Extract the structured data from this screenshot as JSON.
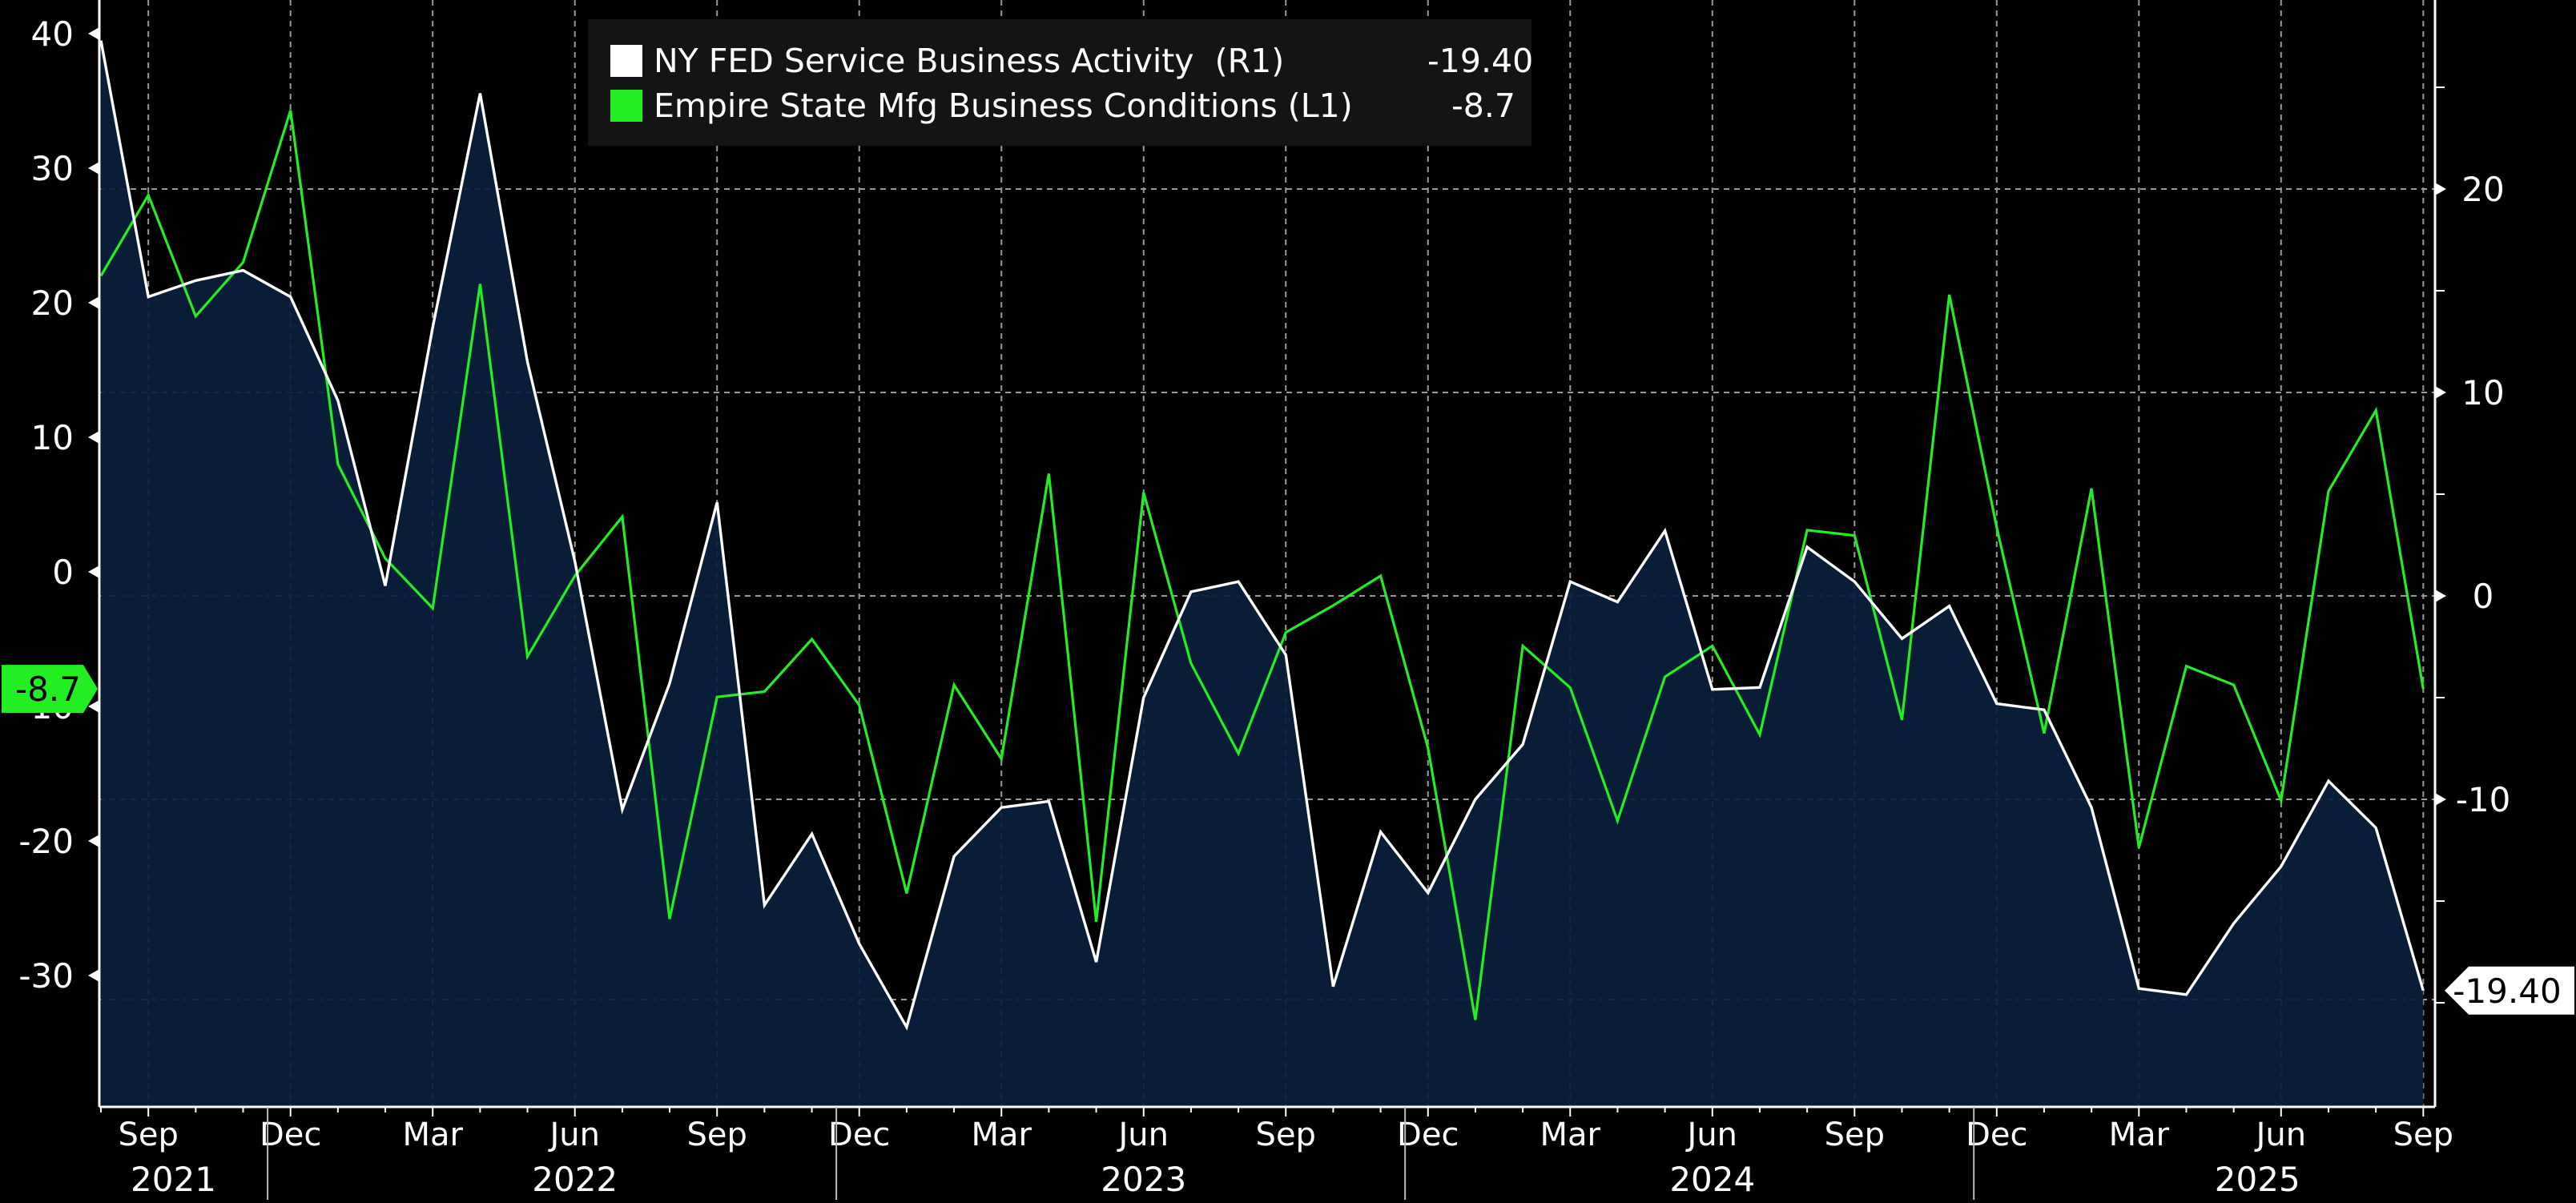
{
  "chart_data": {
    "type": "line",
    "x_labels": [
      "Sep",
      "Dec",
      "Mar",
      "Jun",
      "Sep",
      "Dec",
      "Mar",
      "Jun",
      "Sep",
      "Dec",
      "Mar",
      "Jun",
      "Sep",
      "Dec",
      "Mar",
      "Jun",
      "Sep"
    ],
    "year_labels": [
      "2021",
      "2022",
      "2023",
      "2024",
      "2025"
    ],
    "left_axis": {
      "ticks": [
        40,
        30,
        20,
        10,
        0,
        -10,
        -20,
        -30
      ],
      "ylim": [
        -39.5,
        41.5
      ]
    },
    "right_axis": {
      "ticks": [
        20,
        10,
        0,
        -10
      ],
      "ylim": [
        -25,
        29
      ]
    },
    "series": [
      {
        "name": "NY FED Service Business Activity  (R1)",
        "legend_value": "-19.40",
        "axis": "right",
        "color": "#ffffff",
        "fill": "#0b1f3d",
        "values": [
          27.3,
          14.7,
          15.5,
          16.0,
          14.7,
          9.6,
          0.5,
          13.2,
          24.7,
          11.5,
          1.7,
          -10.5,
          -4.3,
          4.6,
          -15.2,
          -11.7,
          -17.1,
          -21.2,
          -12.8,
          -10.4,
          -10.1,
          -18.0,
          -5.0,
          0.2,
          0.7,
          -2.9,
          -19.2,
          -11.6,
          -14.6,
          -10.0,
          -7.3,
          0.7,
          -0.3,
          3.2,
          -4.6,
          -4.5,
          2.4,
          0.7,
          -2.1,
          -0.5,
          -5.3,
          -5.6,
          -10.4,
          -19.3,
          -19.6,
          -16.1,
          -13.3,
          -9.1,
          -11.4,
          -19.4
        ]
      },
      {
        "name": "Empire State Mfg Business Conditions (L1)",
        "legend_value": "-8.7",
        "axis": "left",
        "color": "#22ee22",
        "values": [
          22.0,
          28.0,
          19.0,
          23.0,
          34.3,
          8.0,
          1.0,
          -2.7,
          21.4,
          -6.3,
          -0.3,
          4.1,
          -25.8,
          -9.3,
          -8.9,
          -5.0,
          -9.9,
          -23.9,
          -8.4,
          -13.9,
          7.3,
          -26.0,
          5.9,
          -6.8,
          -13.5,
          -4.5,
          -2.5,
          -0.3,
          -13.1,
          -33.3,
          -5.5,
          -8.6,
          -18.5,
          -7.8,
          -5.5,
          -12.1,
          3.1,
          2.7,
          -11.0,
          20.6,
          3.3,
          -12.0,
          6.2,
          -20.5,
          -7.0,
          -8.4,
          -17.0,
          6.0,
          12.0,
          -8.7
        ]
      }
    ],
    "value_tags": {
      "left": "-8.7",
      "right": "-19.40"
    },
    "grid": true,
    "legend_position": "top-center"
  }
}
